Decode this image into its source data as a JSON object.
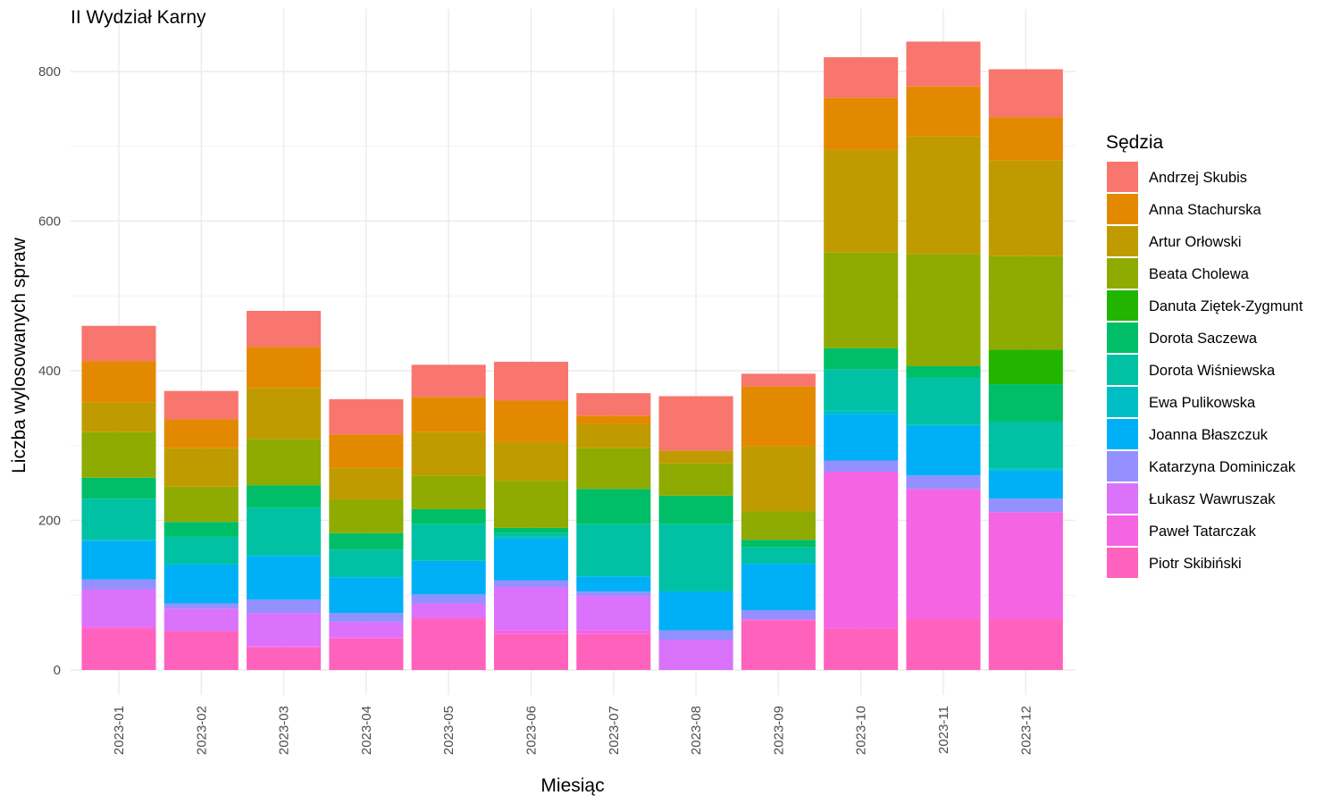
{
  "chart_data": {
    "type": "bar",
    "stacked": true,
    "title": "II Wydział Karny",
    "xlabel": "Miesiąc",
    "ylabel": "Liczba wylosowanych spraw",
    "ylim": [
      -40,
      880
    ],
    "yticks": [
      0,
      200,
      400,
      600,
      800
    ],
    "grid": true,
    "legend_title": "Sędzia",
    "legend_position": "right",
    "categories": [
      "2023-01",
      "2023-02",
      "2023-03",
      "2023-04",
      "2023-05",
      "2023-06",
      "2023-07",
      "2023-08",
      "2023-09",
      "2023-10",
      "2023-11",
      "2023-12"
    ],
    "series": [
      {
        "name": "Piotr Skibiński",
        "color": "#FF62BC",
        "values": [
          55,
          52,
          30,
          42,
          68,
          48,
          48,
          0,
          66,
          55,
          68,
          68
        ]
      },
      {
        "name": "Paweł Tatarczak",
        "color": "#F564E3",
        "values": [
          3,
          0,
          2,
          2,
          3,
          5,
          5,
          0,
          2,
          210,
          174,
          143
        ]
      },
      {
        "name": "Łukasz Wawruszak",
        "color": "#DB72FB",
        "values": [
          50,
          30,
          44,
          20,
          18,
          58,
          46,
          40,
          0,
          0,
          0,
          0
        ]
      },
      {
        "name": "Katarzyna Dominiczak",
        "color": "#9590FF",
        "values": [
          13,
          7,
          18,
          12,
          12,
          9,
          6,
          13,
          12,
          15,
          18,
          18
        ]
      },
      {
        "name": "Joanna Błaszczuk",
        "color": "#00B0F6",
        "values": [
          52,
          52,
          58,
          48,
          45,
          56,
          20,
          52,
          62,
          62,
          66,
          38
        ]
      },
      {
        "name": "Ewa Pulikowska",
        "color": "#00BFC4",
        "values": [
          1,
          0,
          2,
          0,
          0,
          2,
          0,
          0,
          0,
          5,
          2,
          2
        ]
      },
      {
        "name": "Dorota Wiśniewska",
        "color": "#00C1A3",
        "values": [
          55,
          37,
          63,
          37,
          49,
          5,
          70,
          90,
          22,
          55,
          63,
          63
        ]
      },
      {
        "name": "Dorota Saczewa",
        "color": "#00BE67",
        "values": [
          28,
          20,
          30,
          22,
          20,
          7,
          47,
          38,
          10,
          28,
          15,
          50
        ]
      },
      {
        "name": "Danuta Ziętek-Zygmunt",
        "color": "#22B500",
        "values": [
          0,
          0,
          0,
          0,
          0,
          0,
          0,
          0,
          0,
          0,
          0,
          46
        ]
      },
      {
        "name": "Beata Cholewa",
        "color": "#8FAA00",
        "values": [
          61,
          47,
          62,
          45,
          45,
          63,
          55,
          43,
          38,
          128,
          150,
          125
        ]
      },
      {
        "name": "Artur Orłowski",
        "color": "#C09B00",
        "values": [
          40,
          52,
          68,
          42,
          58,
          52,
          32,
          17,
          87,
          137,
          157,
          128
        ]
      },
      {
        "name": "Anna Stachurska",
        "color": "#E38900",
        "values": [
          55,
          38,
          55,
          45,
          47,
          55,
          11,
          0,
          80,
          70,
          67,
          58
        ]
      },
      {
        "name": "Andrzej Skubis",
        "color": "#F8766D",
        "values": [
          47,
          38,
          48,
          47,
          43,
          52,
          30,
          73,
          17,
          54,
          60,
          64
        ]
      }
    ]
  }
}
